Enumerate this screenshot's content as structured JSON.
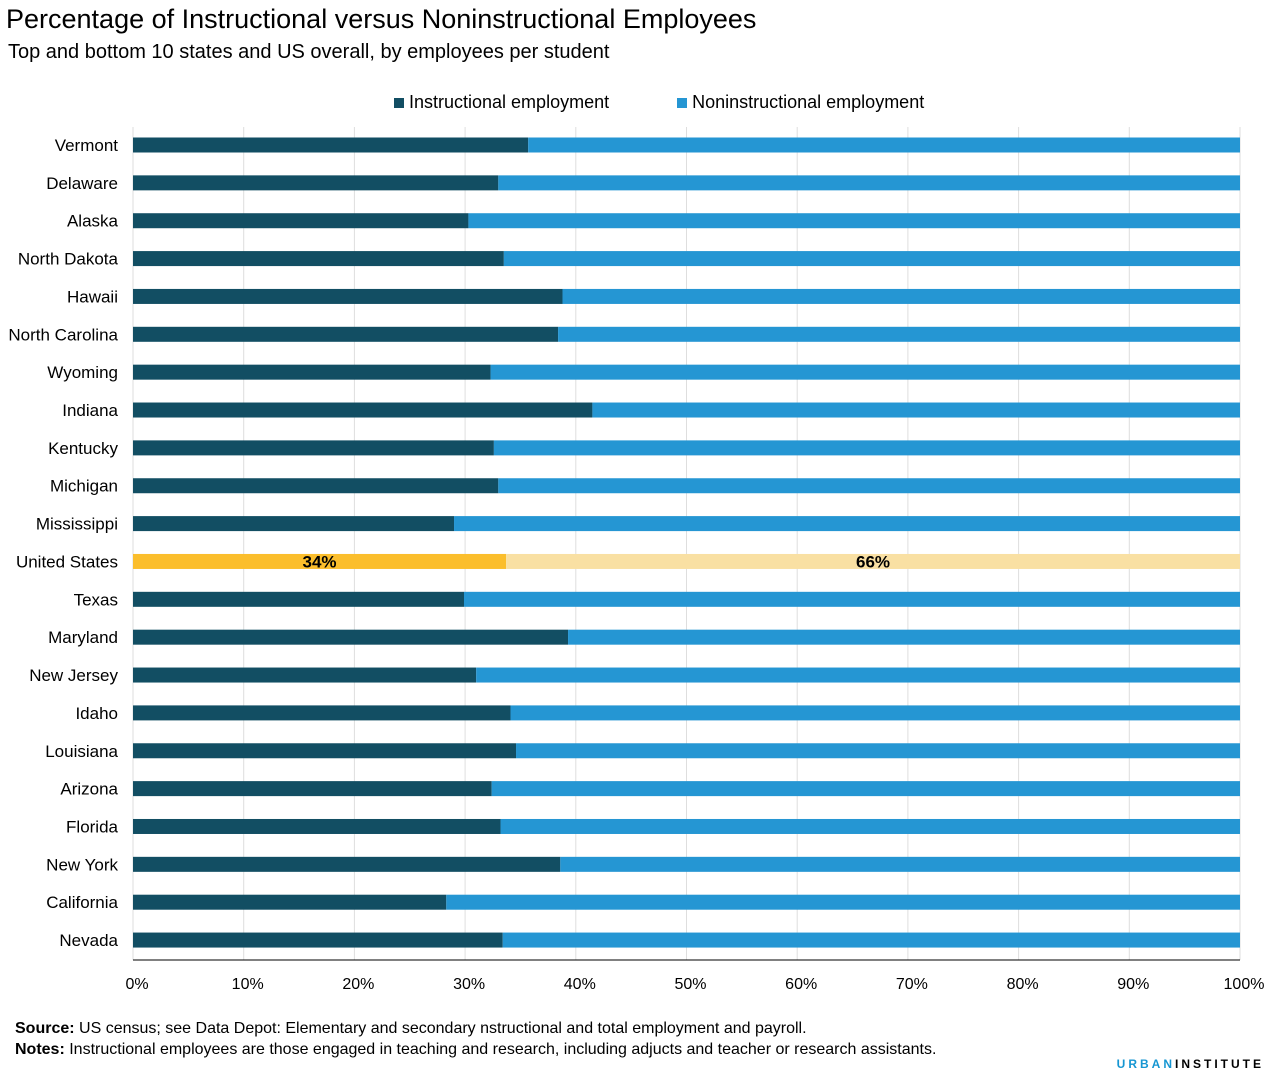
{
  "title": "Percentage of Instructional versus Noninstructional Employees",
  "subtitle": "Top and bottom 10 states and US overall, by employees per student",
  "legend": {
    "instructional": "Instructional employment",
    "noninstructional": "Noninstructional employment"
  },
  "colors": {
    "instructional": "#124e63",
    "noninstructional": "#2596d3",
    "us_instructional": "#fbbe2c",
    "us_noninstructional": "#f9e0a3",
    "grid": "#dedede"
  },
  "chart_data": {
    "type": "bar",
    "orientation": "horizontal",
    "stacked": true,
    "categories": [
      "Vermont",
      "Delaware",
      "Alaska",
      "North Dakota",
      "Hawaii",
      "North Carolina",
      "Wyoming",
      "Indiana",
      "Kentucky",
      "Michigan",
      "Mississippi",
      "United States",
      "Texas",
      "Maryland",
      "New Jersey",
      "Idaho",
      "Louisiana",
      "Arizona",
      "Florida",
      "New York",
      "California",
      "Nevada"
    ],
    "series": [
      {
        "name": "Instructional employment",
        "values": [
          35.7,
          33.0,
          30.3,
          33.5,
          38.8,
          38.4,
          32.3,
          41.5,
          32.6,
          33.0,
          29.0,
          33.7,
          29.9,
          39.3,
          31.0,
          34.1,
          34.6,
          32.4,
          33.2,
          38.6,
          28.3,
          33.4
        ]
      },
      {
        "name": "Noninstructional employment",
        "values": [
          64.3,
          67.0,
          69.7,
          66.5,
          61.2,
          61.6,
          67.7,
          58.5,
          67.4,
          67.0,
          71.0,
          66.3,
          70.1,
          60.7,
          69.0,
          65.9,
          65.4,
          67.6,
          66.8,
          61.4,
          71.7,
          66.6
        ]
      }
    ],
    "highlight": {
      "category": "United States",
      "labels": [
        "34%",
        "66%"
      ]
    },
    "x_ticks": [
      "0%",
      "10%",
      "20%",
      "30%",
      "40%",
      "50%",
      "60%",
      "70%",
      "80%",
      "90%",
      "100%"
    ],
    "xlim": [
      0,
      100
    ],
    "grid": true,
    "legend_position": "top"
  },
  "source_label": "Source:",
  "source_text": " US census; see Data Depot: Elementary and secondary nstructional and total employment and payroll.",
  "notes_label": "Notes:",
  "notes_text": " Instructional employees are those engaged in teaching and research, including adjucts and teacher or research assistants.",
  "brand": {
    "part1": "URBAN",
    "part2": "INSTITUTE"
  }
}
